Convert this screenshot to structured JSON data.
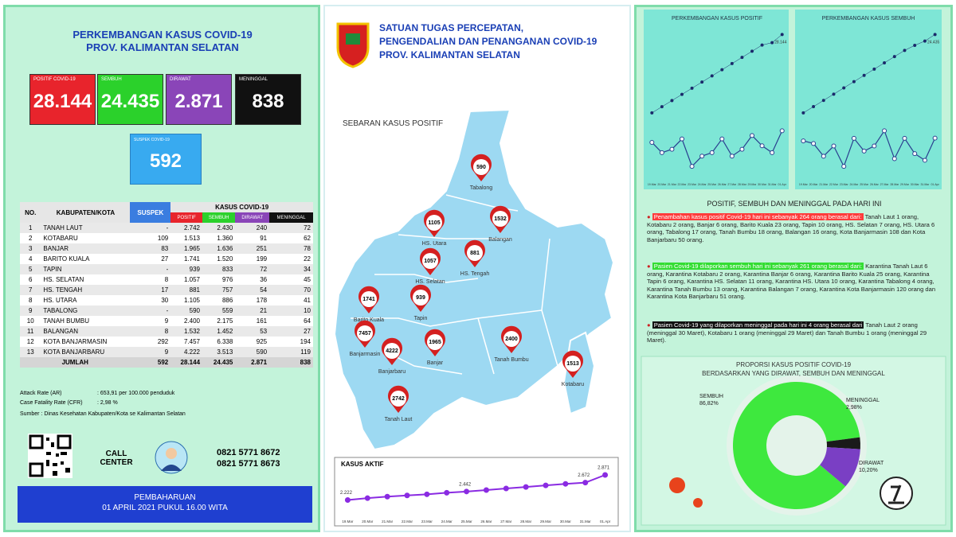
{
  "left": {
    "title_lines": [
      "PERKEMBANGAN KASUS COVID-19",
      "PROV. KALIMANTAN SELATAN"
    ]
  },
  "stats": [
    {
      "label": "POSITIF COVID-19",
      "value": "28.144",
      "color": "#e8242c"
    },
    {
      "label": "SEMBUH",
      "value": "24.435",
      "color": "#2bd12b"
    },
    {
      "label": "DIRAWAT",
      "value": "2.871",
      "color": "#8a45b8"
    },
    {
      "label": "MENINGGAL",
      "value": "838",
      "color": "#111111"
    }
  ],
  "suspek": {
    "label": "SUSPEK COVID-19",
    "value": "592",
    "color": "#38aaf0"
  },
  "table": {
    "header": [
      "NO.",
      "KABUPATEN/KOTA",
      "SUSPEK",
      "KASUS COVID-19"
    ],
    "subheader": [
      "POSITIF",
      "SEMBUH",
      "DIRAWAT",
      "MENINGGAL"
    ],
    "rows": [
      [
        "1",
        "TANAH LAUT",
        "-",
        "2.742",
        "2.430",
        "240",
        "72"
      ],
      [
        "2",
        "KOTABARU",
        "109",
        "1.513",
        "1.360",
        "91",
        "62"
      ],
      [
        "3",
        "BANJAR",
        "83",
        "1.965",
        "1.636",
        "251",
        "78"
      ],
      [
        "4",
        "BARITO KUALA",
        "27",
        "1.741",
        "1.520",
        "199",
        "22"
      ],
      [
        "5",
        "TAPIN",
        "-",
        "939",
        "833",
        "72",
        "34"
      ],
      [
        "6",
        "HS. SELATAN",
        "8",
        "1.057",
        "976",
        "36",
        "45"
      ],
      [
        "7",
        "HS. TENGAH",
        "17",
        "881",
        "757",
        "54",
        "70"
      ],
      [
        "8",
        "HS. UTARA",
        "30",
        "1.105",
        "886",
        "178",
        "41"
      ],
      [
        "9",
        "TABALONG",
        "-",
        "590",
        "559",
        "21",
        "10"
      ],
      [
        "10",
        "TANAH BUMBU",
        "9",
        "2.400",
        "2.175",
        "161",
        "64"
      ],
      [
        "11",
        "BALANGAN",
        "8",
        "1.532",
        "1.452",
        "53",
        "27"
      ],
      [
        "12",
        "KOTA BANJARMASIN",
        "292",
        "7.457",
        "6.338",
        "925",
        "194"
      ],
      [
        "13",
        "KOTA BANJARBARU",
        "9",
        "4.222",
        "3.513",
        "590",
        "119"
      ]
    ],
    "total": [
      "JUMLAH",
      "592",
      "28.144",
      "24.435",
      "2.871",
      "838"
    ]
  },
  "notes": {
    "ar_label": "Attack Rate (AR)",
    "ar_value": ": 653,91 per 100.000 penduduk",
    "cfr_label": "Case Fatality Rate (CFR)",
    "cfr_value": ": 2,98 %",
    "source": "Sumber : Dinas Kesehatan Kabupaten/Kota se Kalimantan Selatan"
  },
  "call_center": {
    "label": "CALL CENTER",
    "phones": [
      "0821 5771 8672",
      "0821 5771 8673"
    ]
  },
  "update": {
    "label": "PEMBAHARUAN",
    "time": "01 APRIL 2021 PUKUL 16.00 WITA"
  },
  "header": {
    "title_lines": [
      "SATUAN TUGAS PERCEPATAN,",
      "PENGENDALIAN DAN PENANGANAN COVID-19",
      "PROV. KALIMANTAN SELATAN"
    ]
  },
  "map": {
    "title": "SEBARAN KASUS POSITIF",
    "regions": [
      {
        "name": "Tabalong",
        "value": 590
      },
      {
        "name": "Balangan",
        "value": 1532
      },
      {
        "name": "HS. Utara",
        "value": 1105
      },
      {
        "name": "HS. Tengah",
        "value": 881
      },
      {
        "name": "HS. Selatan",
        "value": 1057
      },
      {
        "name": "Barito Kuala",
        "value": 1741
      },
      {
        "name": "Tapin",
        "value": 939
      },
      {
        "name": "Banjarmasin",
        "value": 7457
      },
      {
        "name": "Banjarbaru",
        "value": 4222
      },
      {
        "name": "Banjar",
        "value": 1965
      },
      {
        "name": "Tanah Bumbu",
        "value": 2400
      },
      {
        "name": "Kotabaru",
        "value": 1513
      },
      {
        "name": "Tanah Laut",
        "value": 2742
      }
    ]
  },
  "active_chart": {
    "type": "line",
    "title": "KASUS AKTIF",
    "categories": [
      "19.Mar",
      "20.Mar",
      "21.Mar",
      "22.Mar",
      "23.Mar",
      "24.Mar",
      "25.Mar",
      "26.Mar",
      "27.Mar",
      "28.Mar",
      "29.Mar",
      "30.Mar",
      "31.Mar",
      "01.Apr"
    ],
    "series": [
      {
        "color": "#8a2be2",
        "values": [
          2222,
          2270,
          2310,
          2340,
          2370,
          2410,
          2442,
          2480,
          2520,
          2560,
          2600,
          2640,
          2672,
          2871
        ],
        "value_labels": [
          "2.222",
          null,
          null,
          null,
          null,
          null,
          "2.442",
          null,
          null,
          null,
          null,
          null,
          "2.672",
          "2.871"
        ]
      }
    ]
  },
  "positive_chart": {
    "type": "line",
    "title": "PERKEMBANGAN KASUS POSITIF",
    "categories": [
      "19.Mar",
      "20.Mar",
      "21.Mar",
      "22.Mar",
      "23.Mar",
      "24.Mar",
      "25.Mar",
      "26.Mar",
      "27.Mar",
      "28.Mar",
      "29.Mar",
      "30.Mar",
      "31.Mar",
      "01.Apr"
    ],
    "series": [
      {
        "color": "#1b2a6b",
        "values": [
          25600,
          25800,
          26000,
          26200,
          26400,
          26600,
          26800,
          27000,
          27200,
          27400,
          27600,
          27800,
          27880,
          28144
        ],
        "value_labels": [
          null,
          null,
          null,
          null,
          null,
          null,
          null,
          null,
          null,
          null,
          null,
          null,
          null,
          "28.144"
        ]
      },
      {
        "color": "#2a3f8f",
        "values": [
          230,
          200,
          210,
          240,
          160,
          190,
          200,
          240,
          190,
          210,
          250,
          220,
          200,
          264
        ]
      }
    ]
  },
  "recovered_chart": {
    "type": "line",
    "title": "PERKEMBANGAN KASUS SEMBUH",
    "categories": [
      "19.Mar",
      "20.Mar",
      "21.Mar",
      "22.Mar",
      "23.Mar",
      "24.Mar",
      "25.Mar",
      "26.Mar",
      "27.Mar",
      "28.Mar",
      "29.Mar",
      "30.Mar",
      "31.Mar",
      "01.Apr"
    ],
    "series": [
      {
        "color": "#1b2a6b",
        "values": [
          21300,
          21550,
          21800,
          22050,
          22300,
          22550,
          22800,
          23050,
          23300,
          23550,
          23800,
          24000,
          24174,
          24435
        ],
        "value_labels": [
          null,
          null,
          null,
          null,
          null,
          null,
          null,
          null,
          null,
          null,
          null,
          null,
          null,
          "24.435"
        ]
      },
      {
        "color": "#2a3f8f",
        "values": [
          250,
          240,
          190,
          230,
          150,
          260,
          210,
          230,
          290,
          180,
          260,
          200,
          174,
          261
        ]
      }
    ]
  },
  "today": {
    "title": "POSITIF, SEMBUH DAN MENINGGAL PADA HARI INI",
    "items": [
      {
        "highlight": "Penambahan kasus positif Covid-19 hari ini sebanyak 264 orang berasal dari:",
        "color": "#ff3b3b",
        "text": "Tanah Laut 1 orang, Kotabaru 2 orang, Banjar 6 orang, Barito Kuala 23 orang, Tapin 10 orang, HS. Selatan 7 orang, HS. Utara 6 orang, Tabalong 17 orang, Tanah Bumbu 18 orang, Balangan 16 orang, Kota Banjarmasin 108 dan Kota Banjarbaru 50 orang."
      },
      {
        "highlight": "Pasien Covid-19 dilaporkan sembuh hari ini sebanyak 261 orang berasal dari:",
        "color": "#33dd33",
        "text": "Karantina Tanah Laut 6 orang, Karantina Kotabaru 2 orang, Karantina Banjar 6 orang, Karantina Barito Kuala 25 orang, Karantina Tapin 6 orang, Karantina HS. Selatan 11 orang, Karantina HS. Utara 10 orang, Karantina Tabalong 4 orang, Karantina Tanah Bumbu 13 orang, Karantina Balangan 7 orang, Karantina Kota Banjarmasin 120 orang dan Karantina Kota Banjarbaru 51 orang."
      },
      {
        "highlight": "Pasien Covid-19 yang dilaporkan meninggal pada hari ini 4 orang berasal dari",
        "color": "#111111",
        "text": "Tanah Laut 2 orang (meninggal 30 Maret), Kotabaru 1 orang (meninggal 29 Maret) dan Tanah Bumbu 1 orang (meninggal 29 Maret)."
      }
    ]
  },
  "proportion": {
    "title_lines": [
      "PROPORSI KASUS POSITIF COVID-19",
      "BERDASARKAN YANG DIRAWAT, SEMBUH DAN MENINGGAL"
    ],
    "chart": {
      "type": "pie",
      "categories": [
        "SEMBUH",
        "MENINGGAL",
        "DIRAWAT"
      ],
      "values": [
        86.82,
        2.98,
        10.2
      ],
      "value_labels": [
        "86,82%",
        "2,98%",
        "10,20%"
      ],
      "colors": [
        "#3ee83e",
        "#1a1a1a",
        "#7a3fc4"
      ]
    }
  }
}
